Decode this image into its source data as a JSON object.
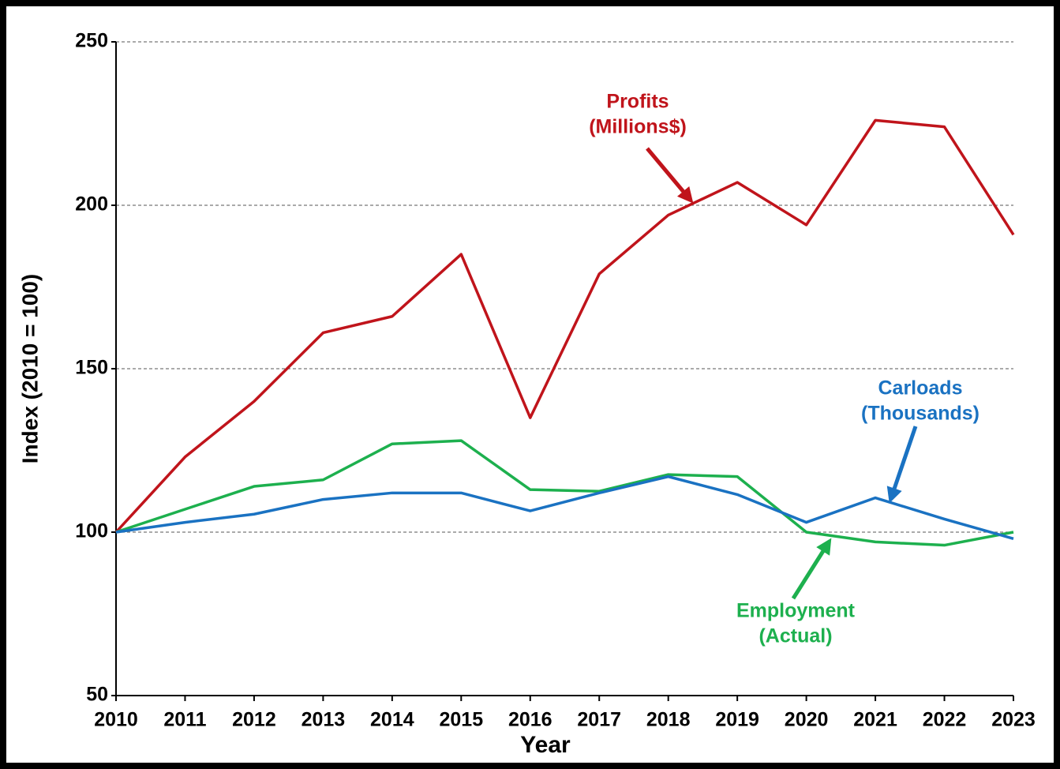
{
  "chart_data": {
    "type": "line",
    "xlabel": "Year",
    "ylabel": "Index (2010 = 100)",
    "x": [
      2010,
      2011,
      2012,
      2013,
      2014,
      2015,
      2016,
      2017,
      2018,
      2019,
      2020,
      2021,
      2022,
      2023
    ],
    "xlim": [
      2010,
      2023
    ],
    "xticks": [
      2010,
      2011,
      2012,
      2013,
      2014,
      2015,
      2016,
      2017,
      2018,
      2019,
      2020,
      2021,
      2022,
      2023
    ],
    "ylim": [
      50,
      250
    ],
    "yticks": [
      50,
      100,
      150,
      200,
      250
    ],
    "grid": true,
    "series": [
      {
        "name": "Profits (Millions$)",
        "color": "#c0141b",
        "values": [
          100,
          123,
          140,
          161,
          166,
          185,
          135,
          179,
          197,
          207,
          194,
          226,
          224,
          191
        ]
      },
      {
        "name": "Employment (Actual)",
        "color": "#1db04e",
        "values": [
          100,
          107,
          114,
          116,
          127,
          128,
          113,
          112.5,
          117.6,
          117,
          100,
          97,
          96,
          100
        ]
      },
      {
        "name": "Carloads (Thousands)",
        "color": "#1a72c2",
        "values": [
          100,
          103,
          105.5,
          110,
          112,
          112,
          106.5,
          112,
          117,
          111.5,
          103,
          110.5,
          104,
          98
        ]
      }
    ],
    "annotations": [
      {
        "lines": [
          "Profits",
          "(Millions$)"
        ],
        "series": 0
      },
      {
        "lines": [
          "Employment",
          "(Actual)"
        ],
        "series": 1
      },
      {
        "lines": [
          "Carloads",
          "(Thousands)"
        ],
        "series": 2
      }
    ]
  }
}
